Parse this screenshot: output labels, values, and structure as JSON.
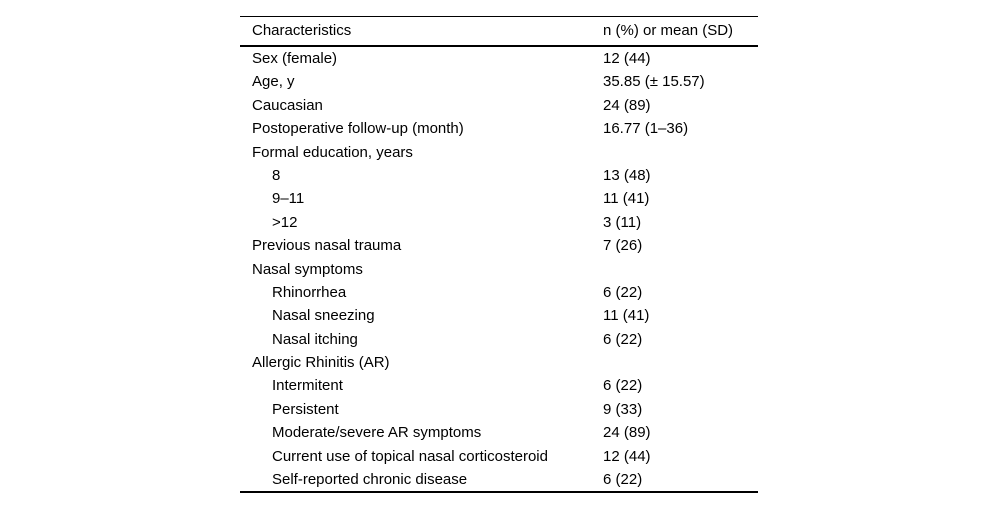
{
  "table": {
    "columns": [
      "Characteristics",
      "n (%) or mean (SD)"
    ],
    "rows": [
      {
        "label": "Sex (female)",
        "value": "12 (44)",
        "indent": 0
      },
      {
        "label": "Age, y",
        "value": "35.85 (± 15.57)",
        "indent": 0
      },
      {
        "label": "Caucasian",
        "value": "24 (89)",
        "indent": 0
      },
      {
        "label": "Postoperative follow-up (month)",
        "value": "16.77 (1–36)",
        "indent": 0
      },
      {
        "label": "Formal education, years",
        "value": "",
        "indent": 0
      },
      {
        "label": "8",
        "value": "13 (48)",
        "indent": 1
      },
      {
        "label": "9–11",
        "value": "11 (41)",
        "indent": 1
      },
      {
        "label": ">12",
        "value": "3 (11)",
        "indent": 1
      },
      {
        "label": "Previous nasal trauma",
        "value": "7 (26)",
        "indent": 0
      },
      {
        "label": "Nasal symptoms",
        "value": "",
        "indent": 0
      },
      {
        "label": "Rhinorrhea",
        "value": "6 (22)",
        "indent": 1
      },
      {
        "label": "Nasal sneezing",
        "value": "11 (41)",
        "indent": 1
      },
      {
        "label": "Nasal itching",
        "value": "6 (22)",
        "indent": 1
      },
      {
        "label": "Allergic Rhinitis (AR)",
        "value": "",
        "indent": 0
      },
      {
        "label": "Intermitent",
        "value": "6 (22)",
        "indent": 1
      },
      {
        "label": "Persistent",
        "value": "9 (33)",
        "indent": 1
      },
      {
        "label": "Moderate/severe AR symptoms",
        "value": "24 (89)",
        "indent": 1
      },
      {
        "label": "Current use of topical nasal corticosteroid",
        "value": "12 (44)",
        "indent": 1
      },
      {
        "label": "Self-reported chronic disease",
        "value": "6 (22)",
        "indent": 1
      }
    ]
  }
}
